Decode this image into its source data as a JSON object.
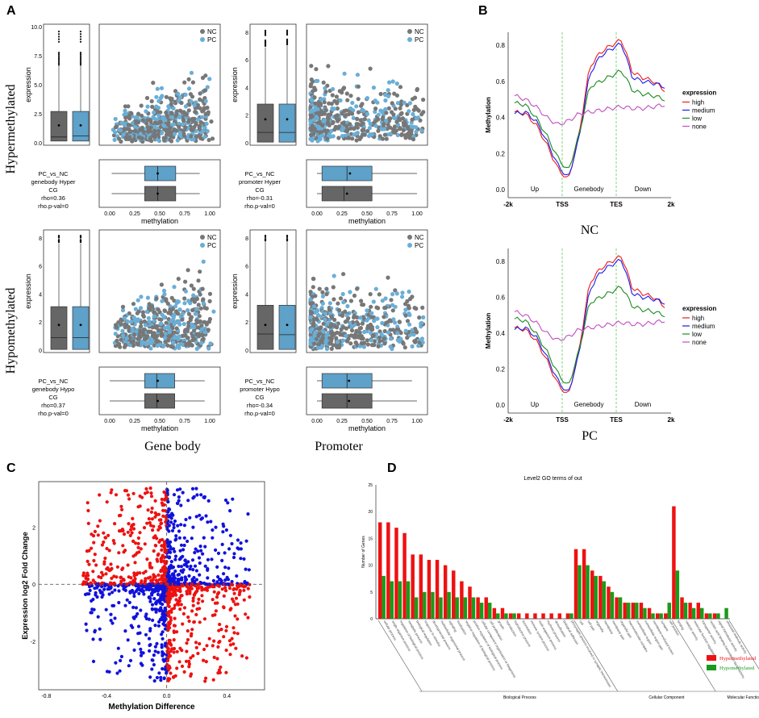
{
  "panels": {
    "A": "A",
    "B": "B",
    "C": "C",
    "D": "D"
  },
  "panelA": {
    "row_labels": [
      "Hypermethylated",
      "Hypomethylated"
    ],
    "col_labels": [
      "Gene body",
      "Promoter"
    ],
    "legend": [
      "NC",
      "PC"
    ],
    "expression_label": "expression",
    "methylation_label": "methylation",
    "colors": {
      "NC": "#777777",
      "PC": "#6aaed6",
      "box_gray": "#666666",
      "box_blue": "#5ea1c9"
    },
    "plots": [
      {
        "id": "gb_hyper",
        "yticks": [
          "0.0",
          "2.5",
          "5.0",
          "7.5",
          "10.0"
        ],
        "ymax": 10,
        "stats": [
          "PC_vs_NC",
          "genebody Hyper",
          "CG",
          "rho=0.36",
          "rho.p-val=0"
        ],
        "nc": {
          "q1": 0.15,
          "med": 0.5,
          "q3": 2.7,
          "wh": 6.6,
          "mean": 1.5
        },
        "pc": {
          "q1": 0.15,
          "med": 0.6,
          "q3": 2.7,
          "wh": 6.6,
          "mean": 1.5
        },
        "hbox": {
          "pc": [
            0.02,
            0.35,
            0.48,
            0.66,
            0.9,
            0.48
          ],
          "nc": [
            0.02,
            0.35,
            0.48,
            0.66,
            0.9,
            0.48
          ]
        }
      },
      {
        "id": "pr_hyper",
        "yticks": [
          "0",
          "2",
          "4",
          "6",
          "8"
        ],
        "ymax": 8.4,
        "stats": [
          "PC_vs_NC",
          "promoter Hyper",
          "CG",
          "rho=-0.31",
          "rho.p-val=0"
        ],
        "nc": {
          "q1": 0.05,
          "med": 0.75,
          "q3": 2.8,
          "wh": 6.9,
          "mean": 1.7
        },
        "pc": {
          "q1": 0.05,
          "med": 0.75,
          "q3": 2.8,
          "wh": 7.0,
          "mean": 1.7
        },
        "hbox": {
          "pc": [
            0.0,
            0.05,
            0.3,
            0.55,
            1.0,
            0.33
          ],
          "nc": [
            0.0,
            0.05,
            0.27,
            0.55,
            1.0,
            0.3
          ]
        }
      },
      {
        "id": "gb_hypo",
        "yticks": [
          "0",
          "2",
          "4",
          "6",
          "8"
        ],
        "ymax": 8.4,
        "stats": [
          "PC_vs_NC",
          "genebody Hypo",
          "CG",
          "rho=0.37",
          "rho.p-val=0"
        ],
        "nc": {
          "q1": 0.05,
          "med": 0.9,
          "q3": 3.1,
          "wh": 7.6,
          "mean": 1.8
        },
        "pc": {
          "q1": 0.05,
          "med": 0.9,
          "q3": 3.1,
          "wh": 7.6,
          "mean": 1.8
        },
        "hbox": {
          "pc": [
            0.0,
            0.35,
            0.47,
            0.65,
            0.95,
            0.48
          ],
          "nc": [
            0.0,
            0.35,
            0.47,
            0.65,
            0.95,
            0.48
          ]
        }
      },
      {
        "id": "pr_hypo",
        "yticks": [
          "0",
          "2",
          "4",
          "6",
          "8"
        ],
        "ymax": 8.4,
        "stats": [
          "PC_vs_NC",
          "promoter Hypo",
          "CG",
          "rho=-0.34",
          "rho.p-val=0"
        ],
        "nc": {
          "q1": 0.05,
          "med": 1.15,
          "q3": 3.2,
          "wh": 7.7,
          "mean": 1.8
        },
        "pc": {
          "q1": 0.05,
          "med": 1.1,
          "q3": 3.2,
          "wh": 7.7,
          "mean": 1.8
        },
        "hbox": {
          "pc": [
            0.0,
            0.05,
            0.3,
            0.55,
            0.95,
            0.32
          ],
          "nc": [
            0.0,
            0.05,
            0.3,
            0.55,
            1.0,
            0.32
          ]
        }
      }
    ],
    "xticks": [
      "0.00",
      "0.25",
      "0.50",
      "0.75",
      "1.00"
    ]
  },
  "panelB": {
    "subtitles": [
      "NC",
      "PC"
    ],
    "ylabel": "Methylation",
    "legend_title": "expression",
    "legend": [
      "high",
      "medium",
      "low",
      "none"
    ],
    "colors": {
      "high": "#ee1c1c",
      "medium": "#1c1cee",
      "low": "#1f8a1f",
      "none": "#c050c0"
    },
    "xticks": [
      "-2k",
      "TSS",
      "TES",
      "2k"
    ],
    "regions": [
      "Up",
      "Genebody",
      "Down"
    ],
    "yticks": [
      "0.0",
      "0.2",
      "0.4",
      "0.6",
      "0.8"
    ]
  },
  "panelC": {
    "xlabel": "Methylation Difference",
    "ylabel": "Expression log2 Fold Change",
    "xticks": [
      "-0.8",
      "-0.4",
      "0.0",
      "0.4"
    ],
    "yticks": [
      "-2",
      "0",
      "2"
    ],
    "colors": {
      "red": "#ee1111",
      "blue": "#1111dd"
    }
  },
  "panelD": {
    "title": "Level2 GO terms of out",
    "ylabel": "Number of Genes",
    "yticks": [
      "0",
      "5",
      "10",
      "15",
      "20",
      "25"
    ],
    "categories": [
      "Biological Process",
      "Cellular Component",
      "Molecular Function"
    ],
    "legend": [
      "Hypermethylated",
      "Hypomethylated"
    ],
    "colors": {
      "hyper": "#ee1111",
      "hypo": "#1a9a1a"
    },
    "chart_data": {
      "type": "bar",
      "title": "Level2 GO terms of out",
      "ylabel": "Number of Genes",
      "ylim": [
        0,
        25
      ],
      "categories": [
        "cellular process",
        "single-organism process",
        "regulation of biological process",
        "metabolic process",
        "biological regulation",
        "response to stimulus",
        "developmental process",
        "multicellular organismal process",
        "signaling",
        "localization",
        "negative regulation of biological process",
        "positive regulation of biological process",
        "cellular component organization or biogenesis",
        "cell proliferation",
        "growth",
        "reproduction",
        "reproductive process",
        "locomotion",
        "immune system process",
        "multi-organism process",
        "rhythmic process",
        "detoxification",
        "biological adhesion",
        "presynaptic process involved in synaptic transmission",
        "cell",
        "cell part",
        "organelle",
        "membrane",
        "membrane part",
        "organelle part",
        "macromolecular complex",
        "extracellular region",
        "extracellular region part",
        "membrane-enclosed lumen",
        "synapse",
        "cell junction",
        "binding",
        "catalytic activity",
        "molecular function regulator",
        "transporter activity",
        "nucleic acid binding transcription factor activity",
        "signal transducer activity",
        "structural molecule activity"
      ],
      "series": [
        {
          "name": "Hypermethylated",
          "values": [
            18,
            18,
            17,
            16,
            12,
            12,
            11,
            11,
            10,
            9,
            7,
            6,
            4,
            4,
            2,
            2,
            1,
            1,
            1,
            1,
            1,
            1,
            1,
            1,
            13,
            13,
            9,
            8,
            6,
            4,
            3,
            3,
            3,
            2,
            1,
            1,
            21,
            4,
            3,
            3,
            1,
            1,
            0
          ]
        },
        {
          "name": "Hypomethylated",
          "values": [
            8,
            7,
            7,
            7,
            4,
            5,
            5,
            4,
            5,
            4,
            4,
            4,
            3,
            3,
            1,
            1,
            1,
            0,
            0,
            0,
            0,
            0,
            0,
            1,
            10,
            10,
            8,
            7,
            5,
            4,
            3,
            3,
            2,
            1,
            1,
            3,
            9,
            3,
            2,
            2,
            1,
            1,
            2
          ]
        }
      ]
    }
  }
}
